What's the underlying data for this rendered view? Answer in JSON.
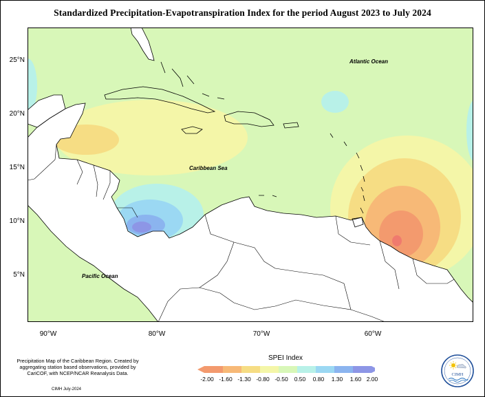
{
  "title": "Standardized Precipitation-Evapotranspiration Index for the period August 2023 to July 2024",
  "map": {
    "labels": {
      "atlantic": "Atlantic Ocean",
      "caribbean": "Caribbean Sea",
      "pacific": "Pacific Ocean"
    },
    "lat_ticks": [
      "25°N",
      "20°N",
      "15°N",
      "10°N",
      "5°N"
    ],
    "lon_ticks": [
      "90°W",
      "80°W",
      "70°W",
      "60°W"
    ],
    "colors": {
      "near_normal": "#d8f7b8",
      "dry_mild": "#f4f6a8",
      "dry_moderate": "#f6dd84",
      "dry_severe": "#f7b977",
      "dry_extreme": "#f39a6e",
      "wet_mild": "#b8f1e8",
      "wet_moderate": "#9bd8f3",
      "wet_severe": "#8bb4ef",
      "wet_extreme": "#8d96e6"
    }
  },
  "legend": {
    "title": "SPEI Index",
    "ticks": [
      "-2.00",
      "-1.60",
      "-1.30",
      "-0.80",
      "-0.50",
      "0.50",
      "0.80",
      "1.30",
      "1.60",
      "2.00"
    ],
    "colors": [
      "#f39a6e",
      "#f7b977",
      "#f6dd84",
      "#f4f6a8",
      "#d8f7b8",
      "#b8f1e8",
      "#9bd8f3",
      "#8bb4ef",
      "#8d96e6"
    ]
  },
  "credit": "Precipitation Map of the Caribbean Region. Created by aggregating station based observations, provided by CariCOF, with NCEP/NCAR Reanalysis Data.",
  "footer": "CIMH July-2024",
  "logo": {
    "text": "CIMH"
  }
}
